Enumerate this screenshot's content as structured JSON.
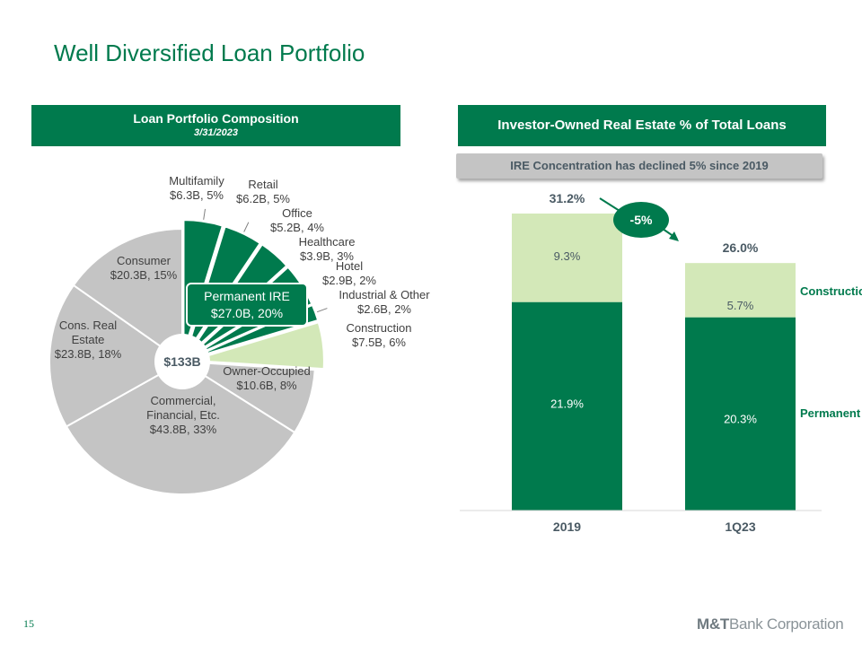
{
  "title": "Well Diversified Loan Portfolio",
  "left_panel": {
    "heading": "Loan Portfolio Composition",
    "date": "3/31/2023"
  },
  "right_panel": {
    "heading": "Investor-Owned Real Estate % of Total Loans",
    "banner": "IRE Concentration has declined 5% since 2019"
  },
  "page_number": "15",
  "brand": {
    "bold": "M&T",
    "rest": "Bank Corporation"
  },
  "colors": {
    "green": "#007a4d",
    "light_green": "#d3e8b8",
    "gray": "#c4c4c4",
    "label_gray": "#4a5a64",
    "white": "#ffffff"
  },
  "chart_data": [
    {
      "type": "pie",
      "title": "Loan Portfolio Composition",
      "center_label": "$133B",
      "group_callout": {
        "name": "Permanent IRE",
        "value": "$27.0B, 20%"
      },
      "slices": [
        {
          "name": "Multifamily",
          "value": "$6.3B, 5%",
          "billions": 6.3,
          "group": "permanent"
        },
        {
          "name": "Retail",
          "value": "$6.2B, 5%",
          "billions": 6.2,
          "group": "permanent"
        },
        {
          "name": "Office",
          "value": "$5.2B, 4%",
          "billions": 5.2,
          "group": "permanent"
        },
        {
          "name": "Healthcare",
          "value": "$3.9B, 3%",
          "billions": 3.9,
          "group": "permanent"
        },
        {
          "name": "Hotel",
          "value": "$2.9B, 2%",
          "billions": 2.9,
          "group": "permanent"
        },
        {
          "name": "Industrial & Other",
          "value": "$2.6B, 2%",
          "billions": 2.6,
          "group": "permanent"
        },
        {
          "name": "Construction",
          "value": "$7.5B, 6%",
          "billions": 7.5,
          "group": "construction"
        },
        {
          "name": "Owner-Occupied",
          "value": "$10.6B, 8%",
          "billions": 10.6,
          "group": "other"
        },
        {
          "name": "Commercial, Financial, Etc.",
          "value": "$43.8B, 33%",
          "billions": 43.8,
          "group": "other"
        },
        {
          "name": "Cons. Real Estate",
          "value": "$23.8B, 18%",
          "billions": 23.8,
          "group": "other"
        },
        {
          "name": "Consumer",
          "value": "$20.3B, 15%",
          "billions": 20.3,
          "group": "other"
        }
      ]
    },
    {
      "type": "bar",
      "stacked": true,
      "title": "Investor-Owned Real Estate % of Total Loans",
      "categories": [
        "2019",
        "1Q23"
      ],
      "series": [
        {
          "name": "Permanent",
          "values": [
            21.9,
            20.3
          ],
          "labels": [
            "21.9%",
            "20.3%"
          ]
        },
        {
          "name": "Construction",
          "values": [
            9.3,
            5.7
          ],
          "labels": [
            "9.3%",
            "5.7%"
          ]
        }
      ],
      "totals": [
        "31.2%",
        "26.0%"
      ],
      "change_label": "-5%",
      "ylim": [
        0,
        31.2
      ]
    }
  ]
}
